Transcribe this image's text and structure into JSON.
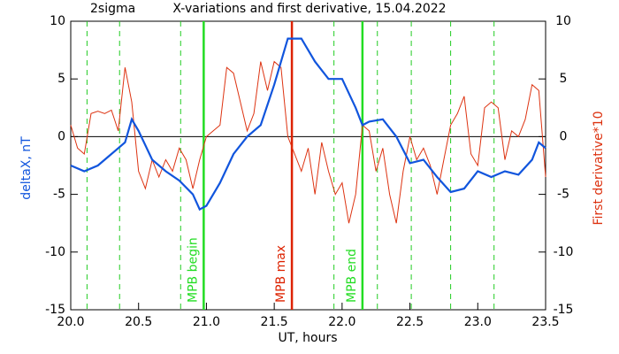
{
  "chart_data": {
    "type": "line",
    "title": "X-variations and first derivative, 15.04.2022",
    "annotation": "2sigma",
    "xlabel": "UT, hours",
    "ylabel": "deltaX, nT",
    "y2label": "First derivative*10",
    "xlim": [
      20.0,
      23.5
    ],
    "xticks": [
      {
        "value": 20,
        "label": "20.0"
      },
      {
        "value": 20.5,
        "label": "20.5"
      },
      {
        "value": 21,
        "label": "21.0"
      },
      {
        "value": 21.5,
        "label": "21.5"
      },
      {
        "value": 22,
        "label": "22.0"
      },
      {
        "value": 22.5,
        "label": "22.5"
      },
      {
        "value": 23,
        "label": "23.0"
      },
      {
        "value": 23.5,
        "label": "23.5"
      }
    ],
    "ylim": [
      -15,
      10
    ],
    "yticks": [
      -15,
      -10,
      -5,
      0,
      5,
      10
    ],
    "y2lim": [
      -15,
      10
    ],
    "y2ticks": [
      -15,
      -10,
      -5,
      0,
      5,
      10
    ],
    "hline": 0,
    "vlines": [
      {
        "value": 20.12,
        "color": "#22cc22",
        "style": "dashed"
      },
      {
        "value": 20.36,
        "color": "#22cc22",
        "style": "dashed"
      },
      {
        "value": 20.81,
        "color": "#22cc22",
        "style": "dashed"
      },
      {
        "value": 20.98,
        "color": "#22dd22",
        "style": "solid",
        "label": "MPB begin"
      },
      {
        "value": 21.63,
        "color": "#dd2200",
        "style": "solid",
        "label": "MPB max"
      },
      {
        "value": 21.94,
        "color": "#22cc22",
        "style": "dashed"
      },
      {
        "value": 22.15,
        "color": "#22dd22",
        "style": "solid",
        "label": "MPB end"
      },
      {
        "value": 22.26,
        "color": "#22cc22",
        "style": "dashed"
      },
      {
        "value": 22.51,
        "color": "#22cc22",
        "style": "dashed"
      },
      {
        "value": 22.8,
        "color": "#22cc22",
        "style": "dashed"
      },
      {
        "value": 23.12,
        "color": "#22cc22",
        "style": "dashed"
      }
    ],
    "series": [
      {
        "name": "deltaX",
        "color": "#1155dd",
        "axis": "y",
        "width": 2.2,
        "x": [
          20.0,
          20.1,
          20.2,
          20.3,
          20.4,
          20.45,
          20.5,
          20.6,
          20.7,
          20.8,
          20.9,
          20.95,
          21.0,
          21.1,
          21.2,
          21.3,
          21.4,
          21.5,
          21.6,
          21.7,
          21.8,
          21.9,
          22.0,
          22.1,
          22.15,
          22.2,
          22.3,
          22.4,
          22.5,
          22.6,
          22.7,
          22.8,
          22.9,
          23.0,
          23.1,
          23.2,
          23.3,
          23.4,
          23.45,
          23.5
        ],
        "values": [
          -2.5,
          -3.0,
          -2.5,
          -1.5,
          -0.5,
          1.5,
          0.5,
          -2.0,
          -3.0,
          -3.8,
          -5.0,
          -6.3,
          -6.0,
          -4.0,
          -1.5,
          0,
          1.0,
          4.5,
          8.5,
          8.5,
          6.5,
          5.0,
          5.0,
          2.5,
          1.0,
          1.3,
          1.5,
          0,
          -2.3,
          -2.0,
          -3.5,
          -4.8,
          -4.5,
          -3.0,
          -3.5,
          -3.0,
          -3.3,
          -2.0,
          -0.5,
          -1.0
        ]
      },
      {
        "name": "First derivative*10",
        "color": "#dd3311",
        "axis": "y2",
        "width": 1,
        "x": [
          20.0,
          20.05,
          20.1,
          20.15,
          20.2,
          20.25,
          20.3,
          20.35,
          20.4,
          20.45,
          20.5,
          20.55,
          20.6,
          20.65,
          20.7,
          20.75,
          20.8,
          20.85,
          20.9,
          20.95,
          21.0,
          21.05,
          21.1,
          21.15,
          21.2,
          21.25,
          21.3,
          21.35,
          21.4,
          21.45,
          21.5,
          21.55,
          21.6,
          21.65,
          21.7,
          21.75,
          21.8,
          21.85,
          21.9,
          21.95,
          22.0,
          22.05,
          22.1,
          22.15,
          22.2,
          22.25,
          22.3,
          22.35,
          22.4,
          22.45,
          22.5,
          22.55,
          22.6,
          22.65,
          22.7,
          22.75,
          22.8,
          22.85,
          22.9,
          22.95,
          23.0,
          23.05,
          23.1,
          23.15,
          23.2,
          23.25,
          23.3,
          23.35,
          23.4,
          23.45,
          23.5
        ],
        "values": [
          1,
          -1,
          -1.5,
          2.0,
          2.2,
          2.0,
          2.3,
          0.5,
          6.0,
          3.0,
          -3.0,
          -4.5,
          -2.0,
          -3.5,
          -2.0,
          -3.0,
          -1.0,
          -2.0,
          -4.5,
          -2.0,
          0,
          0.5,
          1.0,
          6.0,
          5.5,
          3.0,
          0.5,
          2.0,
          6.5,
          4.0,
          6.5,
          6.0,
          0,
          -1.5,
          -3.0,
          -1.0,
          -5.0,
          -0.5,
          -3.0,
          -5.0,
          -4.0,
          -7.5,
          -5.0,
          1.0,
          0.5,
          -3.0,
          -1.0,
          -5.0,
          -7.5,
          -3.0,
          0,
          -2.0,
          -1.0,
          -2.5,
          -5.0,
          -2.0,
          1.0,
          2.0,
          3.5,
          -1.5,
          -2.5,
          2.5,
          3.0,
          2.5,
          -2.0,
          0.5,
          0,
          1.5,
          4.5,
          4.0,
          -3.5
        ]
      }
    ]
  }
}
